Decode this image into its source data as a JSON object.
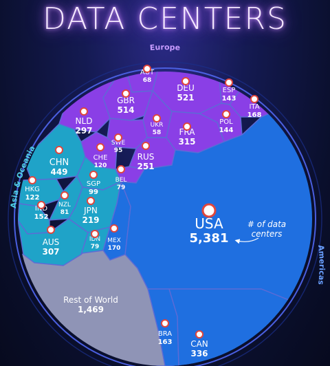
{
  "title": "DATA CENTERS",
  "colors": {
    "europe": "#8a3fe6",
    "asia": "#1fa3c8",
    "americas": "#1f6fe0",
    "rest": "#8f94b6",
    "outline": "#5d6bd6"
  },
  "chart_data": {
    "type": "voronoi-treemap",
    "regions": [
      {
        "name": "Europe",
        "color_key": "europe"
      },
      {
        "name": "Asia & Oceania",
        "color_key": "asia"
      },
      {
        "name": "Americas",
        "color_key": "americas"
      }
    ],
    "cells": [
      {
        "code": "AUT",
        "value": 68,
        "region": "Europe"
      },
      {
        "code": "DEU",
        "value": 521,
        "region": "Europe"
      },
      {
        "code": "ESP",
        "value": 143,
        "region": "Europe"
      },
      {
        "code": "GBR",
        "value": 514,
        "region": "Europe"
      },
      {
        "code": "ITA",
        "value": 168,
        "region": "Europe"
      },
      {
        "code": "NLD",
        "value": 297,
        "region": "Europe"
      },
      {
        "code": "UKR",
        "value": 58,
        "region": "Europe"
      },
      {
        "code": "POL",
        "value": 144,
        "region": "Europe"
      },
      {
        "code": "FRA",
        "value": 315,
        "region": "Europe"
      },
      {
        "code": "SWE",
        "value": 95,
        "region": "Europe"
      },
      {
        "code": "CHE",
        "value": 120,
        "region": "Europe"
      },
      {
        "code": "RUS",
        "value": 251,
        "region": "Europe"
      },
      {
        "code": "BEL",
        "value": 79,
        "region": "Europe"
      },
      {
        "code": "CHN",
        "value": 449,
        "region": "Asia & Oceania"
      },
      {
        "code": "HKG",
        "value": 122,
        "region": "Asia & Oceania"
      },
      {
        "code": "SGP",
        "value": 99,
        "region": "Asia & Oceania"
      },
      {
        "code": "IND",
        "value": 152,
        "region": "Asia & Oceania"
      },
      {
        "code": "NZL",
        "value": 81,
        "region": "Asia & Oceania"
      },
      {
        "code": "JPN",
        "value": 219,
        "region": "Asia & Oceania"
      },
      {
        "code": "AUS",
        "value": 307,
        "region": "Asia & Oceania"
      },
      {
        "code": "IDN",
        "value": 79,
        "region": "Asia & Oceania"
      },
      {
        "code": "MEX",
        "value": 170,
        "region": "Americas"
      },
      {
        "code": "USA",
        "value": 5381,
        "value_label": "5,381",
        "region": "Americas"
      },
      {
        "code": "BRA",
        "value": 163,
        "region": "Americas"
      },
      {
        "code": "CAN",
        "value": 336,
        "region": "Americas"
      },
      {
        "code": "Rest of World",
        "value": 1469,
        "value_label": "1,469",
        "region": ""
      }
    ],
    "annotation": "# of data\ncenters"
  }
}
